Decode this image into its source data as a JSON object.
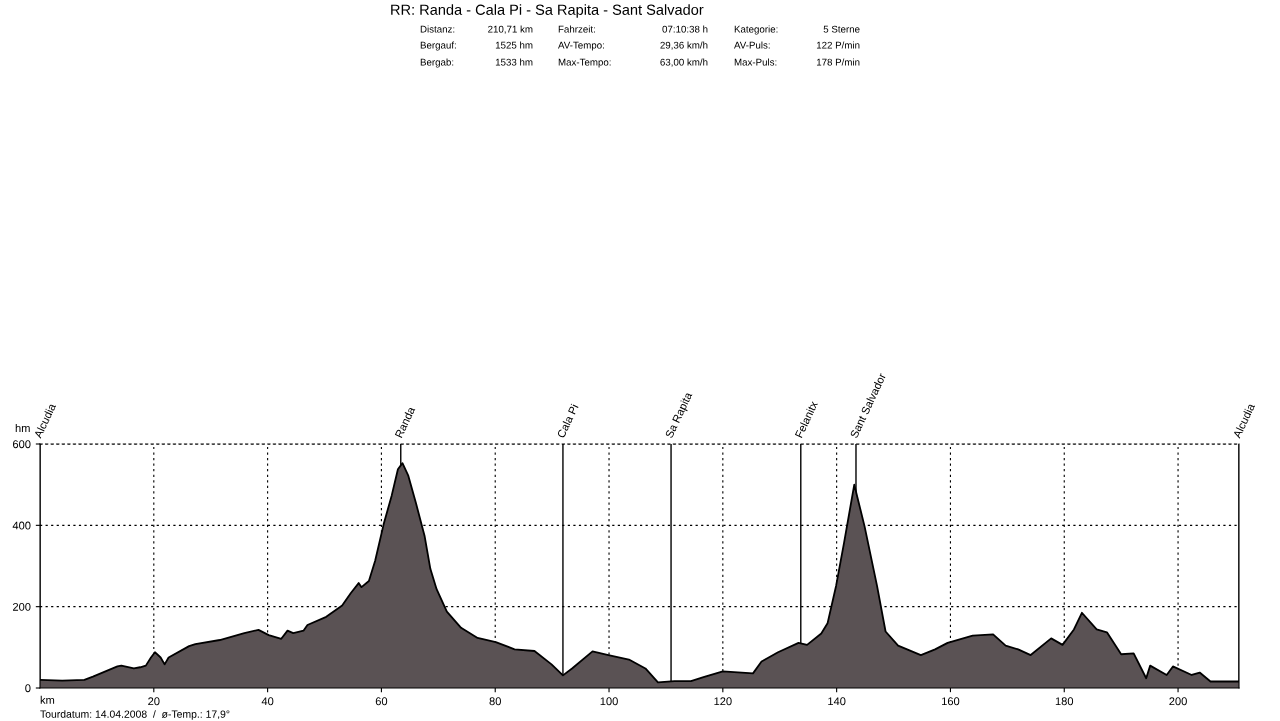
{
  "chart_data": {
    "type": "area",
    "title": "RR: Randa - Cala Pi - Sa Rapita - Sant Salvador",
    "xlabel": "km",
    "ylabel": "hm",
    "annotations": [
      "Distanz:",
      "210,71 km",
      "Fahrzeit:",
      "07:10:38 h",
      "Kategorie:",
      "5 Sterne",
      "Bergauf:",
      "1525 hm",
      "AV-Tempo:",
      "29,36 km/h",
      "AV-Puls:",
      "122 P/min",
      "Bergab:",
      "1533 hm",
      "Max-Tempo:",
      "63,00 km/h",
      "Max-Puls:",
      "178 P/min",
      "Tourdatum: 14.04.2008  /  ø-Temp.: 17,9°"
    ],
    "x": [
      0,
      3.9,
      7.8,
      9.3,
      13.6,
      14.3,
      16.5,
      17.6,
      18.6,
      19.5,
      20.2,
      21.2,
      21.9,
      22.6,
      26.2,
      27.3,
      31.6,
      35.9,
      38.4,
      40.2,
      42.4,
      43.5,
      44.5,
      46.3,
      47.0,
      50.3,
      53.1,
      54.6,
      56.0,
      56.5,
      57.8,
      58.9,
      60.4,
      61.8,
      62.9,
      63.7,
      64.7,
      66.1,
      67.6,
      68.6,
      69.7,
      71.5,
      74.0,
      76.9,
      80.1,
      83.4,
      86.9,
      89.9,
      91.9,
      93.5,
      97.1,
      99.9,
      103.5,
      106.4,
      108.6,
      111.5,
      114.4,
      116.6,
      120,
      125.3,
      126.8,
      129.7,
      133.3,
      134.8,
      137.3,
      138.4,
      139.9,
      141.3,
      143.1,
      144.9,
      147.1,
      148.6,
      150.8,
      154.8,
      157.3,
      159.5,
      163.9,
      167.5,
      169.7,
      171.9,
      174.1,
      177.7,
      179.7,
      181.7,
      183.1,
      185.7,
      187.5,
      190.0,
      192.2,
      194.4,
      195.1,
      198.0,
      199.1,
      202.4,
      203.8,
      205.7,
      210.4,
      210.71
    ],
    "series": [
      {
        "color": "#5a5254",
        "values": [
          20,
          18,
          20,
          28,
          53,
          55,
          48,
          51,
          55,
          75,
          88,
          75,
          58,
          75,
          103,
          108,
          118,
          135,
          143,
          130,
          121,
          141,
          135,
          141,
          155,
          175,
          203,
          233,
          258,
          248,
          263,
          313,
          403,
          473,
          538,
          553,
          523,
          453,
          373,
          293,
          243,
          188,
          148,
          123,
          113,
          95,
          91,
          58,
          31,
          48,
          90,
          81,
          70,
          48,
          14,
          17,
          17,
          27,
          41,
          36,
          65,
          88,
          111,
          106,
          134,
          159,
          251,
          357,
          500,
          398,
          251,
          139,
          104,
          81,
          95,
          111,
          129,
          132,
          104,
          95,
          81,
          122,
          106,
          144,
          185,
          144,
          137,
          83,
          85,
          24,
          55,
          32,
          53,
          32,
          38,
          16,
          16,
          16
        ]
      }
    ],
    "xlim": [
      0,
      210.71
    ],
    "ylim": [
      0,
      600
    ],
    "xticks": [
      20,
      40,
      60,
      80,
      100,
      120,
      140,
      160,
      180,
      200
    ],
    "yticks": [
      0,
      200,
      400,
      600
    ],
    "grid": true,
    "line_style": "solid",
    "ref_lines": [
      {
        "axis": "x",
        "value": 0,
        "label": "Alcudia"
      },
      {
        "axis": "x",
        "value": 63.4,
        "label": "Randa"
      },
      {
        "axis": "x",
        "value": 91.9,
        "label": "Cala Pi"
      },
      {
        "axis": "x",
        "value": 110.9,
        "label": "Sa Rapita"
      },
      {
        "axis": "x",
        "value": 133.7,
        "label": "Felanitx"
      },
      {
        "axis": "x",
        "value": 143.4,
        "label": "Sant Salvador"
      },
      {
        "axis": "x",
        "value": 210.71,
        "label": "Alcudia"
      }
    ]
  }
}
